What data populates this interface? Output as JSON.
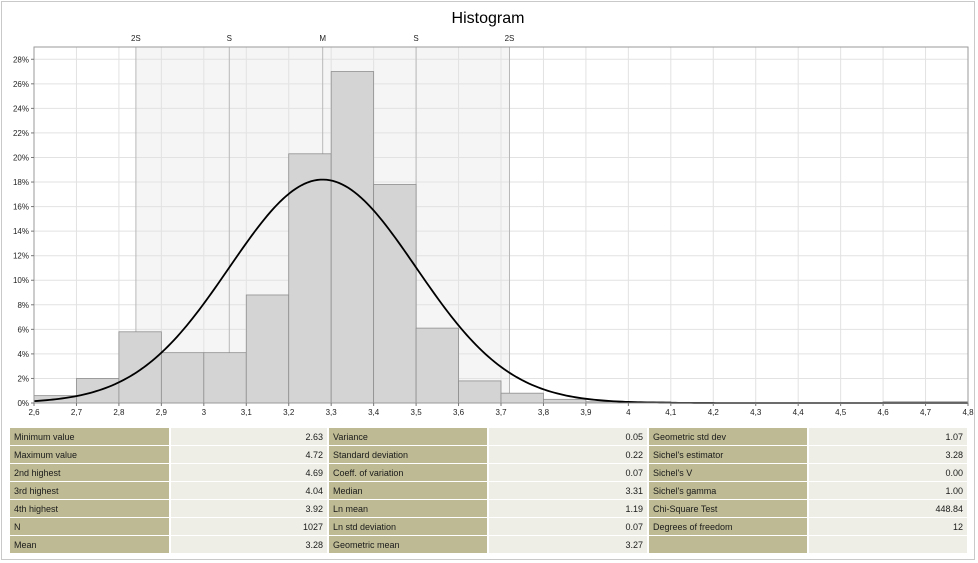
{
  "chart_data": {
    "type": "bar",
    "title": "Histogram",
    "xlabel": "",
    "ylabel": "",
    "xlim": [
      2.6,
      4.8
    ],
    "ylim": [
      0,
      29
    ],
    "x_ticks": [
      {
        "v": 2.6,
        "label": "2,6"
      },
      {
        "v": 2.7,
        "label": "2,7"
      },
      {
        "v": 2.8,
        "label": "2,8"
      },
      {
        "v": 2.9,
        "label": "2,9"
      },
      {
        "v": 3.0,
        "label": "3"
      },
      {
        "v": 3.1,
        "label": "3,1"
      },
      {
        "v": 3.2,
        "label": "3,2"
      },
      {
        "v": 3.3,
        "label": "3,3"
      },
      {
        "v": 3.4,
        "label": "3,4"
      },
      {
        "v": 3.5,
        "label": "3,5"
      },
      {
        "v": 3.6,
        "label": "3,6"
      },
      {
        "v": 3.7,
        "label": "3,7"
      },
      {
        "v": 3.8,
        "label": "3,8"
      },
      {
        "v": 3.9,
        "label": "3,9"
      },
      {
        "v": 4.0,
        "label": "4"
      },
      {
        "v": 4.1,
        "label": "4,1"
      },
      {
        "v": 4.2,
        "label": "4,2"
      },
      {
        "v": 4.3,
        "label": "4,3"
      },
      {
        "v": 4.4,
        "label": "4,4"
      },
      {
        "v": 4.5,
        "label": "4,5"
      },
      {
        "v": 4.6,
        "label": "4,6"
      },
      {
        "v": 4.7,
        "label": "4,7"
      },
      {
        "v": 4.8,
        "label": "4,8"
      }
    ],
    "y_ticks": [
      {
        "v": 0,
        "label": "0%"
      },
      {
        "v": 2,
        "label": "2%"
      },
      {
        "v": 4,
        "label": "4%"
      },
      {
        "v": 6,
        "label": "6%"
      },
      {
        "v": 8,
        "label": "8%"
      },
      {
        "v": 10,
        "label": "10%"
      },
      {
        "v": 12,
        "label": "12%"
      },
      {
        "v": 14,
        "label": "14%"
      },
      {
        "v": 16,
        "label": "16%"
      },
      {
        "v": 18,
        "label": "18%"
      },
      {
        "v": 20,
        "label": "20%"
      },
      {
        "v": 22,
        "label": "22%"
      },
      {
        "v": 24,
        "label": "24%"
      },
      {
        "v": 26,
        "label": "26%"
      },
      {
        "v": 28,
        "label": "28%"
      }
    ],
    "bins": [
      {
        "x0": 2.6,
        "x1": 2.7,
        "value": 0.6
      },
      {
        "x0": 2.7,
        "x1": 2.8,
        "value": 2.0
      },
      {
        "x0": 2.8,
        "x1": 2.9,
        "value": 5.8
      },
      {
        "x0": 2.9,
        "x1": 3.0,
        "value": 4.1
      },
      {
        "x0": 3.0,
        "x1": 3.1,
        "value": 4.1
      },
      {
        "x0": 3.1,
        "x1": 3.2,
        "value": 8.8
      },
      {
        "x0": 3.2,
        "x1": 3.3,
        "value": 20.3
      },
      {
        "x0": 3.3,
        "x1": 3.4,
        "value": 27.0
      },
      {
        "x0": 3.4,
        "x1": 3.5,
        "value": 17.8
      },
      {
        "x0": 3.5,
        "x1": 3.6,
        "value": 6.1
      },
      {
        "x0": 3.6,
        "x1": 3.7,
        "value": 1.8
      },
      {
        "x0": 3.7,
        "x1": 3.8,
        "value": 0.8
      },
      {
        "x0": 3.8,
        "x1": 3.9,
        "value": 0.3
      },
      {
        "x0": 3.9,
        "x1": 4.0,
        "value": 0.1
      },
      {
        "x0": 4.0,
        "x1": 4.1,
        "value": 0.1
      },
      {
        "x0": 4.6,
        "x1": 4.7,
        "value": 0.1
      },
      {
        "x0": 4.7,
        "x1": 4.8,
        "value": 0.1
      }
    ],
    "normal_curve": {
      "mean": 3.28,
      "std": 0.22,
      "peak": 18.2
    },
    "sigma_markers": [
      {
        "v": 2.84,
        "label": "2S"
      },
      {
        "v": 3.06,
        "label": "S"
      },
      {
        "v": 3.28,
        "label": "M"
      },
      {
        "v": 3.5,
        "label": "S"
      },
      {
        "v": 3.72,
        "label": "2S"
      }
    ],
    "colors": {
      "bar_fill": "#d4d4d4",
      "bar_stroke": "#8e8e8e",
      "curve": "#000000",
      "grid": "#e2e2e2",
      "band": "#f5f5f5"
    }
  },
  "stats": {
    "rows": [
      [
        {
          "label": "Minimum value",
          "value": "2.63"
        },
        {
          "label": "Variance",
          "value": "0.05"
        },
        {
          "label": "Geometric std dev",
          "value": "1.07"
        }
      ],
      [
        {
          "label": "Maximum value",
          "value": "4.72"
        },
        {
          "label": "Standard deviation",
          "value": "0.22"
        },
        {
          "label": "Sichel's estimator",
          "value": "3.28"
        }
      ],
      [
        {
          "label": "2nd highest",
          "value": "4.69"
        },
        {
          "label": "Coeff. of variation",
          "value": "0.07"
        },
        {
          "label": "Sichel's V",
          "value": "0.00"
        }
      ],
      [
        {
          "label": "3rd highest",
          "value": "4.04"
        },
        {
          "label": "Median",
          "value": "3.31"
        },
        {
          "label": "Sichel's gamma",
          "value": "1.00"
        }
      ],
      [
        {
          "label": "4th highest",
          "value": "3.92"
        },
        {
          "label": "Ln mean",
          "value": "1.19"
        },
        {
          "label": "Chi-Square Test",
          "value": "448.84"
        }
      ],
      [
        {
          "label": "N",
          "value": "1027"
        },
        {
          "label": "Ln std deviation",
          "value": "0.07"
        },
        {
          "label": "Degrees of freedom",
          "value": "12"
        }
      ],
      [
        {
          "label": "Mean",
          "value": "3.28"
        },
        {
          "label": "Geometric mean",
          "value": "3.27"
        },
        {
          "label": "",
          "value": ""
        }
      ]
    ]
  }
}
